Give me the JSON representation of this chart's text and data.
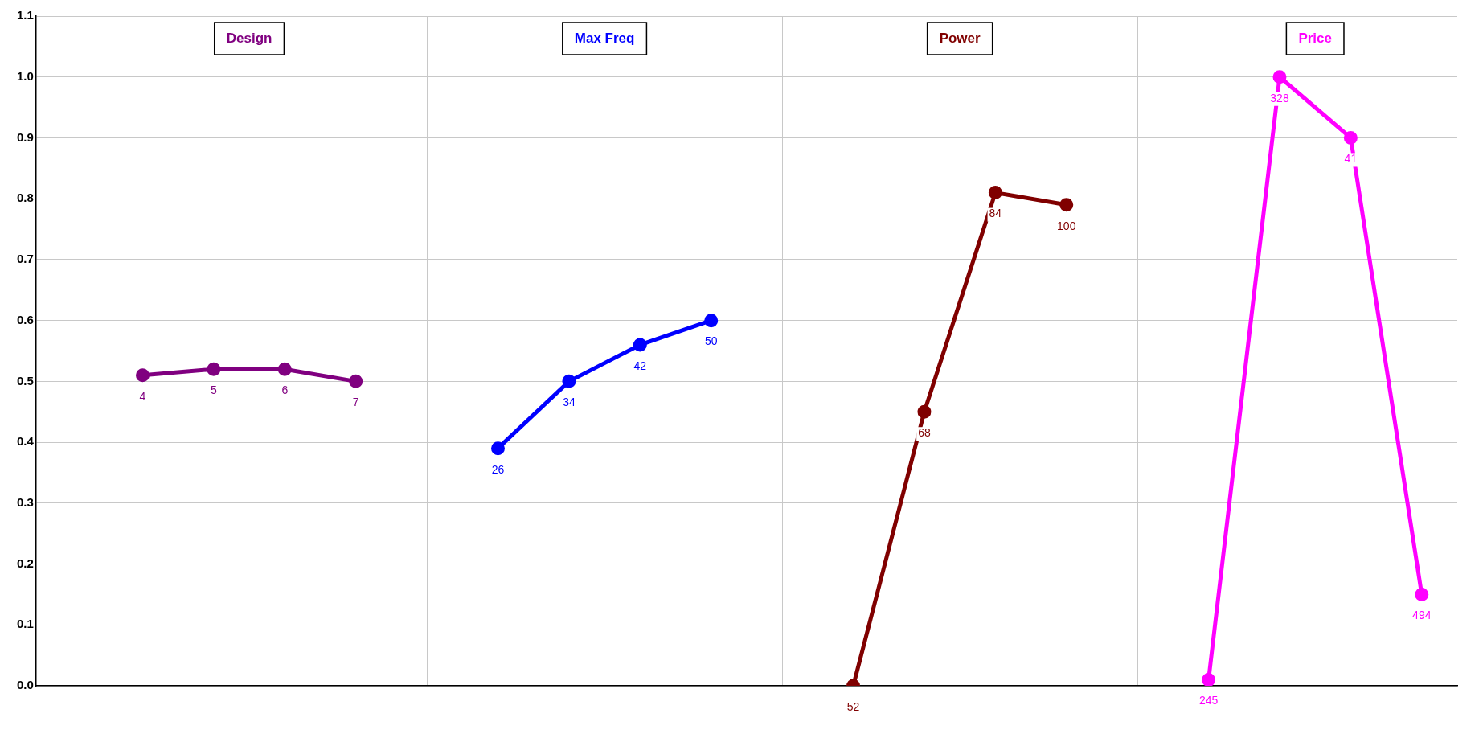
{
  "chart_data": {
    "type": "line",
    "categories": [
      null,
      null,
      null,
      null,
      null,
      null,
      null,
      null,
      null,
      null,
      null,
      null,
      null,
      null,
      null,
      null,
      null,
      null,
      null,
      null
    ],
    "ylim": [
      0,
      1.1
    ],
    "yticks": [
      {
        "value": 0,
        "label": "0.0"
      },
      {
        "value": 0.1,
        "label": "0.1"
      },
      {
        "value": 0.2,
        "label": "0.2"
      },
      {
        "value": 0.3,
        "label": "0.3"
      },
      {
        "value": 0.4,
        "label": "0.4"
      },
      {
        "value": 0.5,
        "label": "0.5"
      },
      {
        "value": 0.6,
        "label": "0.6"
      },
      {
        "value": 0.7,
        "label": "0.7"
      },
      {
        "value": 0.8,
        "label": "0.8"
      },
      {
        "value": 0.9,
        "label": "0.9"
      },
      {
        "value": 1,
        "label": "1.0"
      },
      {
        "value": 1.1,
        "label": "1.1"
      }
    ],
    "grid": true,
    "tick_labels": "y",
    "marker": "circle",
    "legend": false,
    "series": [
      {
        "name": "Design",
        "color": "#800080",
        "values": [
          null,
          0.51,
          0.52,
          0.52,
          0.5,
          null,
          null,
          null,
          null,
          null,
          null,
          null,
          null,
          null,
          null,
          null,
          null,
          null,
          null,
          null
        ]
      },
      {
        "name": "Max Freq",
        "color": "#0000ff",
        "values": [
          null,
          null,
          null,
          null,
          null,
          null,
          0.39,
          0.5,
          0.56,
          0.6,
          null,
          null,
          null,
          null,
          null,
          null,
          null,
          null,
          null,
          null
        ]
      },
      {
        "name": "Power",
        "color": "#800000",
        "values": [
          null,
          null,
          null,
          null,
          null,
          null,
          null,
          null,
          null,
          null,
          null,
          0,
          0.45,
          0.81,
          0.79,
          null,
          null,
          null,
          null,
          null
        ]
      },
      {
        "name": "Price",
        "color": "#ff00ff",
        "values": [
          null,
          null,
          null,
          null,
          null,
          null,
          null,
          null,
          null,
          null,
          null,
          null,
          null,
          null,
          null,
          null,
          0.01,
          1.0,
          0.9,
          0.15
        ]
      }
    ],
    "annotations": [
      {
        "text": "4",
        "y": 0.51
      },
      {
        "text": "5",
        "y": 0.52
      },
      {
        "text": "6",
        "y": 0.52
      },
      {
        "text": "7",
        "y": 0.5
      },
      {
        "text": "26",
        "y": 0.39
      },
      {
        "text": "34",
        "y": 0.5
      },
      {
        "text": "42",
        "y": 0.56
      },
      {
        "text": "50",
        "y": 0.6
      },
      {
        "text": "52",
        "y": 0
      },
      {
        "text": "68",
        "y": 0.45
      },
      {
        "text": "84",
        "y": 0.81
      },
      {
        "text": "100",
        "y": 0.79
      },
      {
        "text": "245",
        "y": 0.01
      },
      {
        "text": "328",
        "y": 1.0
      },
      {
        "text": "41",
        "y": 0.9
      },
      {
        "text": "494",
        "y": 0.15
      }
    ]
  }
}
